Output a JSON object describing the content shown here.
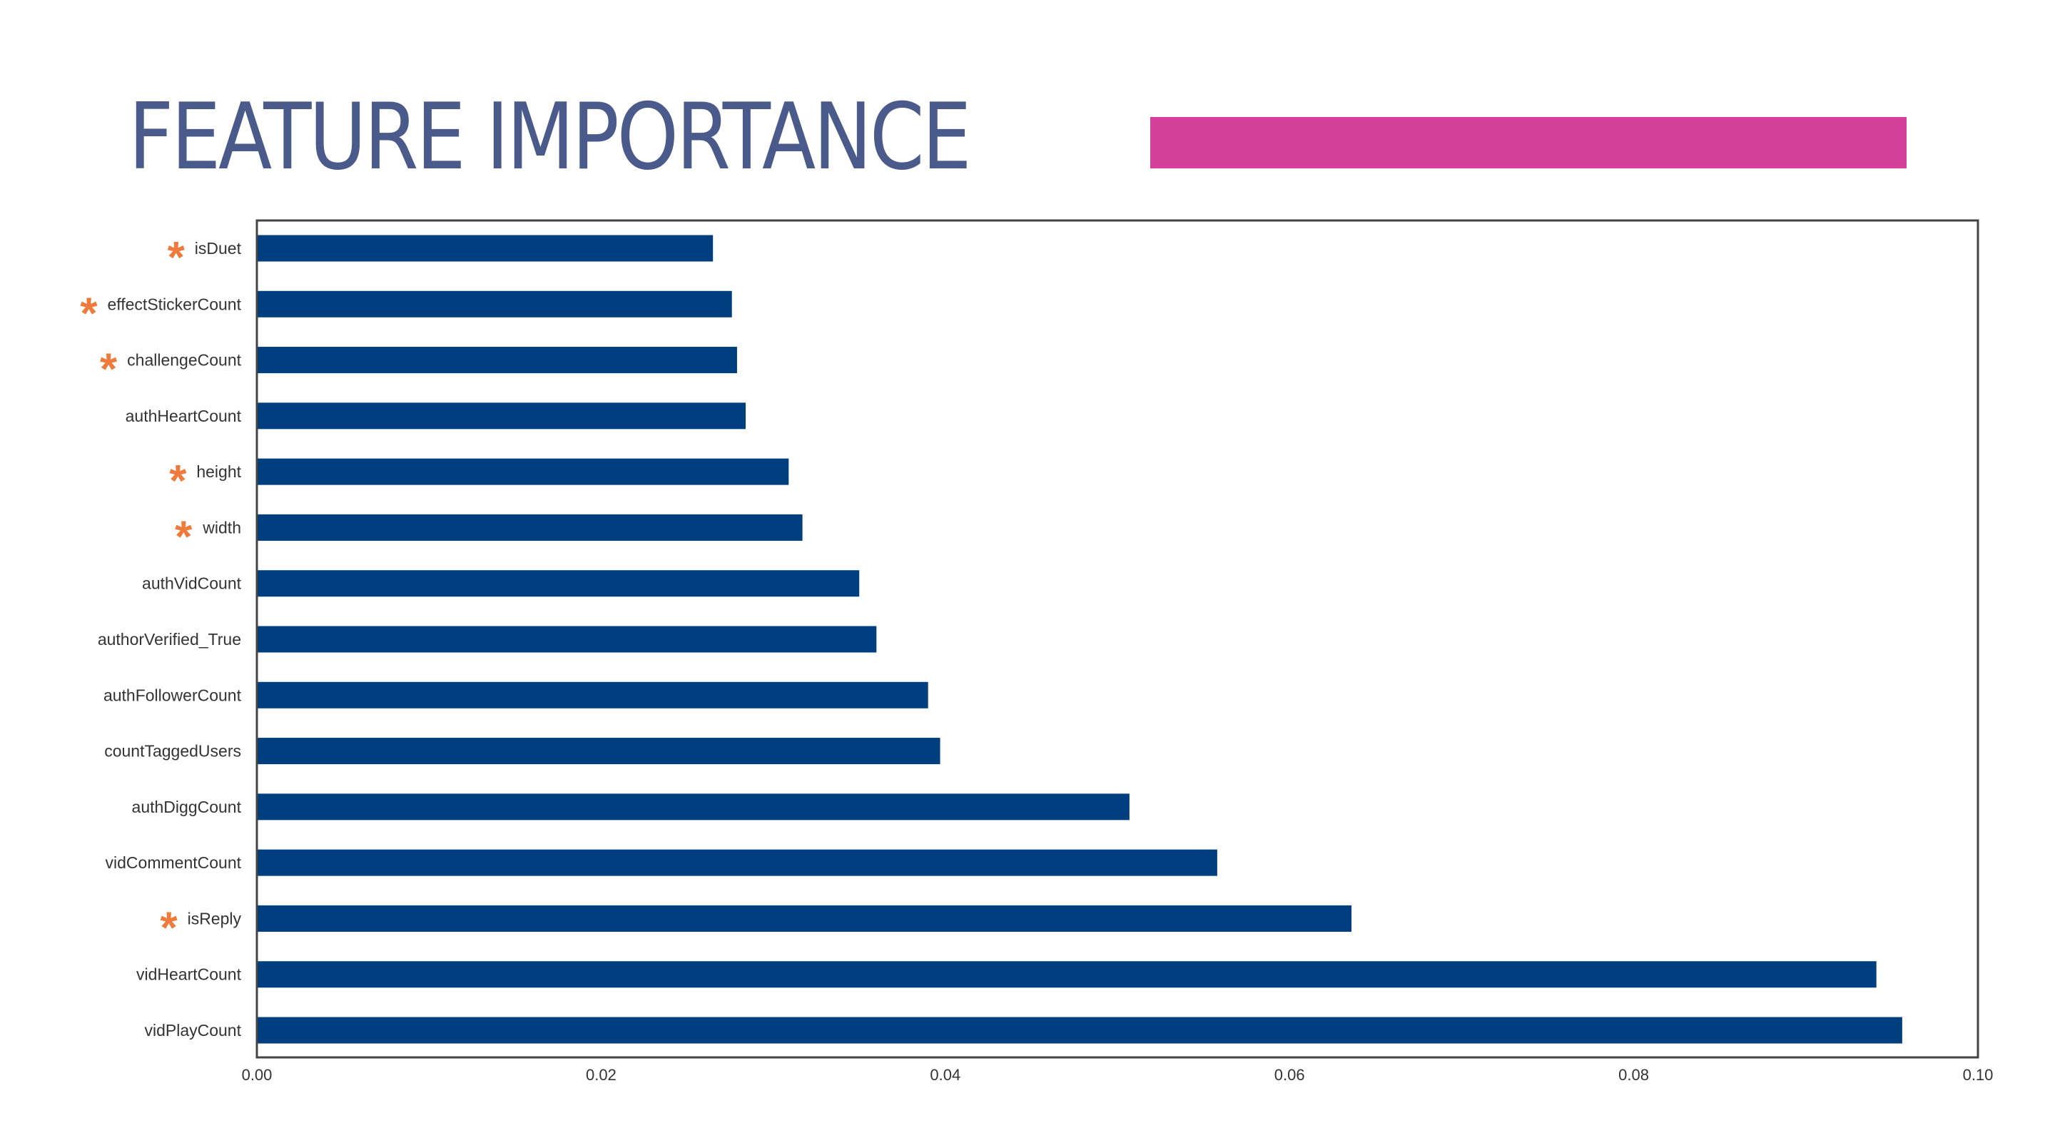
{
  "slide": {
    "title": "FEATURE IMPORTANCE"
  },
  "colors": {
    "title": "#4a5a8a",
    "accent": "#d4419b",
    "bar": "#003f7f",
    "star": "#ee7a3c",
    "frame": "#444444",
    "tick_text": "#333333"
  },
  "chart_data": {
    "type": "bar",
    "orientation": "horizontal",
    "title": "",
    "xlabel": "",
    "ylabel": "",
    "xlim": [
      0.0,
      0.1
    ],
    "xticks": [
      "0.00",
      "0.02",
      "0.04",
      "0.06",
      "0.08",
      "0.10"
    ],
    "grid": false,
    "legend": false,
    "star_marker": "*",
    "categories": [
      "isDuet",
      "effectStickerCount",
      "challengeCount",
      "authHeartCount",
      "height",
      "width",
      "authVidCount",
      "authorVerified_True",
      "authFollowerCount",
      "countTaggedUsers",
      "authDiggCount",
      "vidCommentCount",
      "isReply",
      "vidHeartCount",
      "vidPlayCount"
    ],
    "values": [
      0.0265,
      0.0276,
      0.0279,
      0.0284,
      0.0309,
      0.0317,
      0.035,
      0.036,
      0.039,
      0.0397,
      0.0507,
      0.0558,
      0.0636,
      0.0941,
      0.0956
    ],
    "starred": [
      "isDuet",
      "effectStickerCount",
      "challengeCount",
      "height",
      "width",
      "isReply"
    ]
  }
}
